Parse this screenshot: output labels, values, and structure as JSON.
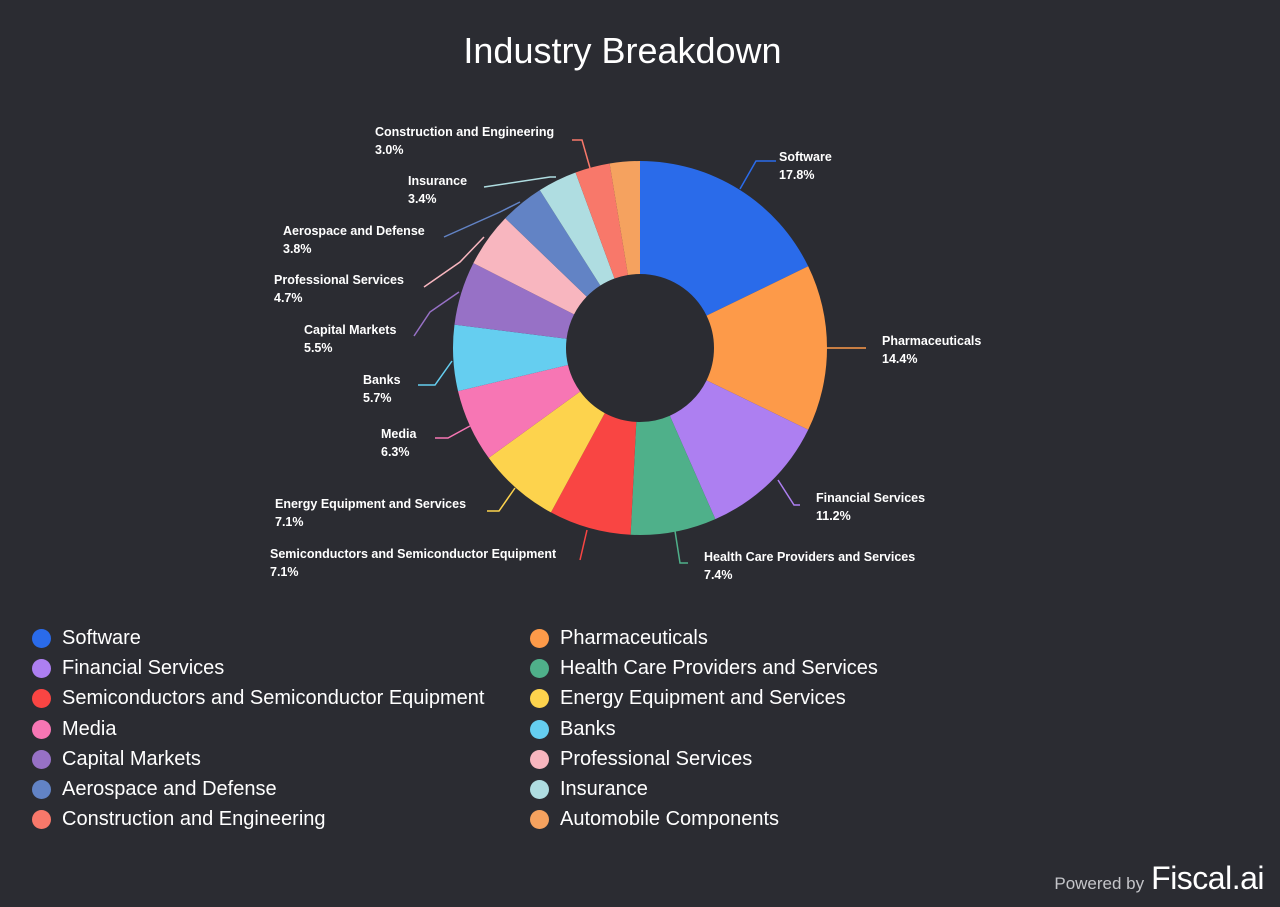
{
  "chart_data": {
    "type": "pie",
    "title": "Industry Breakdown",
    "slices": [
      {
        "label": "Software",
        "value": 17.8,
        "pct_label": "17.8%",
        "color": "#2a6bea"
      },
      {
        "label": "Pharmaceuticals",
        "value": 14.4,
        "pct_label": "14.4%",
        "color": "#fd9a49"
      },
      {
        "label": "Financial Services",
        "value": 11.2,
        "pct_label": "11.2%",
        "color": "#ad7ff1"
      },
      {
        "label": "Health Care Providers and Services",
        "value": 7.4,
        "pct_label": "7.4%",
        "color": "#4fb08a"
      },
      {
        "label": "Semiconductors and Semiconductor Equipment",
        "value": 7.1,
        "pct_label": "7.1%",
        "color": "#f94543"
      },
      {
        "label": "Energy Equipment and Services",
        "value": 7.1,
        "pct_label": "7.1%",
        "color": "#fdd34d"
      },
      {
        "label": "Media",
        "value": 6.3,
        "pct_label": "6.3%",
        "color": "#f776b4"
      },
      {
        "label": "Banks",
        "value": 5.7,
        "pct_label": "5.7%",
        "color": "#65cef0"
      },
      {
        "label": "Capital Markets",
        "value": 5.5,
        "pct_label": "5.5%",
        "color": "#9771c6"
      },
      {
        "label": "Professional Services",
        "value": 4.7,
        "pct_label": "4.7%",
        "color": "#f8b6bf"
      },
      {
        "label": "Aerospace and Defense",
        "value": 3.8,
        "pct_label": "3.8%",
        "color": "#6283c5"
      },
      {
        "label": "Insurance",
        "value": 3.4,
        "pct_label": "3.4%",
        "color": "#afdde1"
      },
      {
        "label": "Construction and Engineering",
        "value": 3.0,
        "pct_label": "3.0%",
        "color": "#f8786a"
      },
      {
        "label": "Automobile Components",
        "value": 2.6,
        "pct_label": "",
        "color": "#f5a25f"
      }
    ],
    "donut": true,
    "legend_position": "bottom"
  },
  "footer": {
    "powered_by": "Powered by",
    "brand": "Fiscal.ai"
  }
}
